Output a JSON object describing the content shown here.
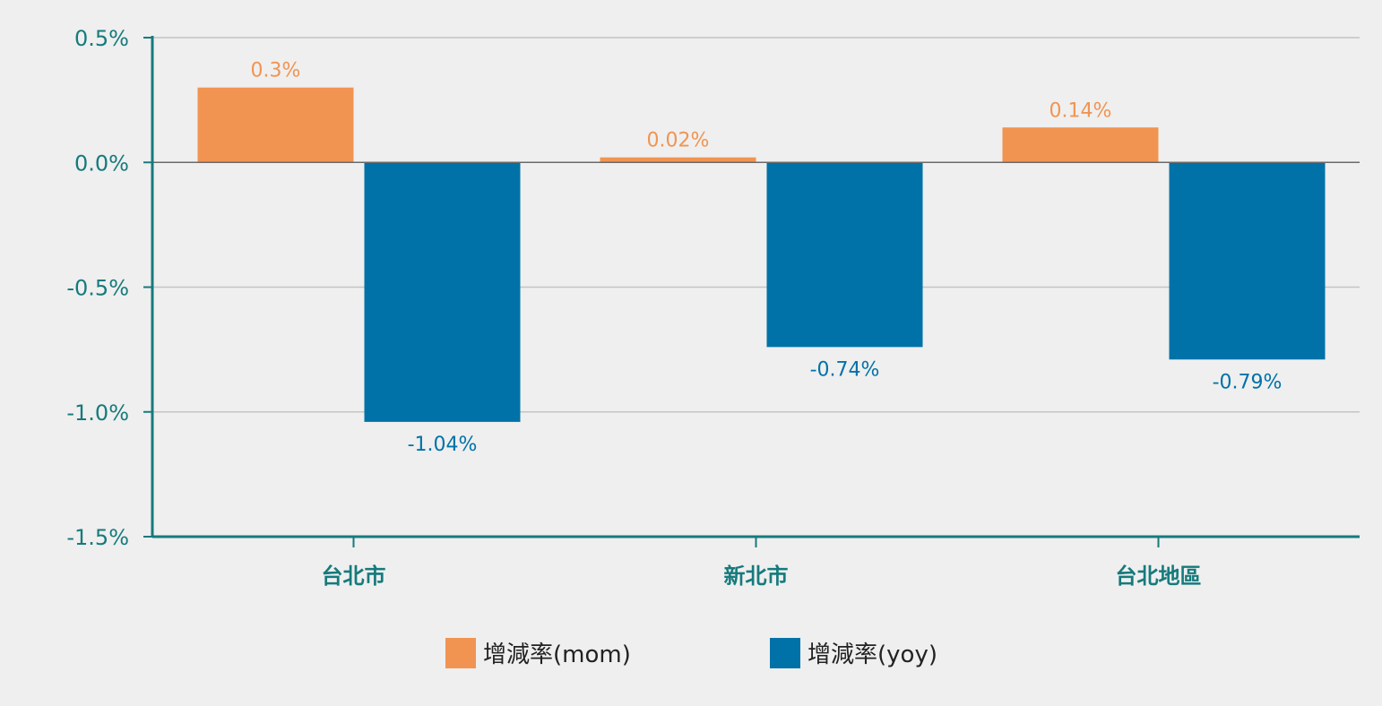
{
  "chart_data": {
    "type": "bar",
    "categories": [
      "台北市",
      "新北市",
      "台北地區"
    ],
    "series": [
      {
        "name": "增減率(mom)",
        "values": [
          0.3,
          0.02,
          0.14
        ],
        "labels": [
          "0.3%",
          "0.02%",
          "0.14%"
        ],
        "color": "#f19452"
      },
      {
        "name": "增減率(yoy)",
        "values": [
          -1.04,
          -0.74,
          -0.79
        ],
        "labels": [
          "-1.04%",
          "-0.74%",
          "-0.79%"
        ],
        "color": "#0072a8"
      }
    ],
    "ylim": [
      -1.5,
      0.5
    ],
    "yticks": [
      0.5,
      0.0,
      -0.5,
      -1.0,
      -1.5
    ],
    "ytick_labels": [
      "0.5%",
      "0.0%",
      "-0.5%",
      "-1.0%",
      "-1.5%"
    ],
    "grid": true,
    "legend_position": "bottom-center",
    "colors": {
      "axis": "#167a7c",
      "tick_text": "#167a7c",
      "category_text": "#167a7c",
      "grid": "#c4c4c4",
      "zero_line": "#6a6a6a"
    }
  }
}
